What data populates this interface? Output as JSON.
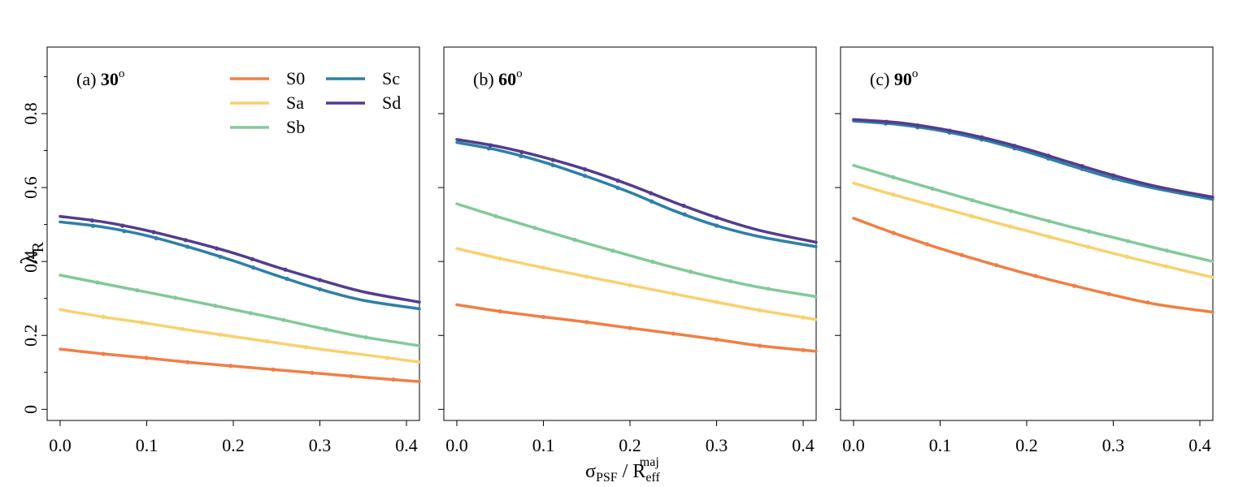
{
  "figure": {
    "xlabel": {
      "sigma": "σ",
      "sub1": "PSF",
      "sep": " / R",
      "sub2": "eff",
      "sup2": "maj"
    },
    "ylabel": {
      "main": "λ",
      "sub": "R"
    }
  },
  "chart_data": [
    {
      "type": "line",
      "panel_prefix": "(a) ",
      "panel_bold": "30",
      "panel_sup": "o",
      "xlim": [
        -0.015,
        0.415
      ],
      "ylim": [
        -0.03,
        0.98
      ],
      "xticks": [
        "0.0",
        "0.1",
        "0.2",
        "0.3",
        "0.4"
      ],
      "yticks": [
        "0",
        "0.2",
        "0.4",
        "0.6",
        "0.8"
      ],
      "show_yticklabels": true,
      "show_legend": true,
      "series": [
        {
          "name": "S0",
          "color": "#F07F45",
          "x": [
            0,
            0.05,
            0.1,
            0.15,
            0.2,
            0.25,
            0.3,
            0.35,
            0.415
          ],
          "y": [
            0.163,
            0.15,
            0.139,
            0.127,
            0.117,
            0.107,
            0.097,
            0.087,
            0.075
          ],
          "markers_x": [
            0.05,
            0.1,
            0.147,
            0.197,
            0.246,
            0.291,
            0.336,
            0.385
          ]
        },
        {
          "name": "Sa",
          "color": "#F8D16F",
          "x": [
            0,
            0.05,
            0.1,
            0.15,
            0.2,
            0.25,
            0.3,
            0.35,
            0.415
          ],
          "y": [
            0.27,
            0.25,
            0.233,
            0.214,
            0.197,
            0.18,
            0.163,
            0.148,
            0.128
          ],
          "markers_x": [
            0.05,
            0.095,
            0.141,
            0.185,
            0.239,
            0.284,
            0.33,
            0.378
          ]
        },
        {
          "name": "Sb",
          "color": "#82C99A",
          "x": [
            0,
            0.05,
            0.1,
            0.15,
            0.2,
            0.25,
            0.3,
            0.35,
            0.415
          ],
          "y": [
            0.363,
            0.34,
            0.317,
            0.294,
            0.27,
            0.246,
            0.22,
            0.196,
            0.172
          ],
          "markers_x": [
            0.043,
            0.089,
            0.133,
            0.179,
            0.22,
            0.258,
            0.307,
            0.353
          ]
        },
        {
          "name": "Sc",
          "color": "#2E7FA8",
          "x": [
            0,
            0.05,
            0.1,
            0.15,
            0.2,
            0.25,
            0.3,
            0.35,
            0.415
          ],
          "y": [
            0.507,
            0.493,
            0.47,
            0.438,
            0.402,
            0.362,
            0.325,
            0.295,
            0.272
          ],
          "markers_x": [
            0.038,
            0.074,
            0.111,
            0.147,
            0.185,
            0.223,
            0.262,
            0.3
          ]
        },
        {
          "name": "Sd",
          "color": "#533C8F",
          "x": [
            0,
            0.05,
            0.1,
            0.15,
            0.2,
            0.25,
            0.3,
            0.35,
            0.415
          ],
          "y": [
            0.522,
            0.507,
            0.484,
            0.455,
            0.423,
            0.385,
            0.35,
            0.318,
            0.29
          ],
          "markers_x": [
            0.037,
            0.072,
            0.108,
            0.145,
            0.181,
            0.222,
            0.26,
            0.3
          ]
        }
      ]
    },
    {
      "type": "line",
      "panel_prefix": "(b) ",
      "panel_bold": "60",
      "panel_sup": "o",
      "xlim": [
        -0.015,
        0.415
      ],
      "ylim": [
        -0.03,
        0.98
      ],
      "xticks": [
        "0.0",
        "0.1",
        "0.2",
        "0.3",
        "0.4"
      ],
      "yticks": [
        "0",
        "0.2",
        "0.4",
        "0.6",
        "0.8"
      ],
      "show_yticklabels": false,
      "show_legend": false,
      "series": [
        {
          "name": "S0",
          "color": "#F07F45",
          "x": [
            0,
            0.05,
            0.1,
            0.15,
            0.2,
            0.25,
            0.3,
            0.35,
            0.415
          ],
          "y": [
            0.283,
            0.265,
            0.25,
            0.236,
            0.22,
            0.205,
            0.189,
            0.172,
            0.157
          ],
          "markers_x": [
            0.05,
            0.1,
            0.15,
            0.2,
            0.25,
            0.3,
            0.35,
            0.4
          ]
        },
        {
          "name": "Sa",
          "color": "#F8D16F",
          "x": [
            0,
            0.05,
            0.1,
            0.15,
            0.2,
            0.25,
            0.3,
            0.35,
            0.415
          ],
          "y": [
            0.435,
            0.408,
            0.383,
            0.359,
            0.336,
            0.313,
            0.29,
            0.268,
            0.243
          ],
          "markers_x": [
            0.05,
            0.1,
            0.15,
            0.2,
            0.25,
            0.3,
            0.35,
            0.4
          ]
        },
        {
          "name": "Sb",
          "color": "#82C99A",
          "x": [
            0,
            0.05,
            0.1,
            0.15,
            0.2,
            0.25,
            0.3,
            0.35,
            0.415
          ],
          "y": [
            0.556,
            0.519,
            0.484,
            0.449,
            0.416,
            0.384,
            0.355,
            0.33,
            0.305
          ],
          "markers_x": [
            0.045,
            0.09,
            0.136,
            0.18,
            0.226,
            0.27,
            0.316,
            0.36
          ]
        },
        {
          "name": "Sc",
          "color": "#2E7FA8",
          "x": [
            0,
            0.05,
            0.1,
            0.15,
            0.2,
            0.25,
            0.3,
            0.35,
            0.415
          ],
          "y": [
            0.722,
            0.7,
            0.669,
            0.63,
            0.587,
            0.538,
            0.497,
            0.467,
            0.44
          ],
          "markers_x": [
            0.037,
            0.074,
            0.111,
            0.148,
            0.186,
            0.225,
            0.263,
            0.3
          ]
        },
        {
          "name": "Sd",
          "color": "#533C8F",
          "x": [
            0,
            0.05,
            0.1,
            0.15,
            0.2,
            0.25,
            0.3,
            0.35,
            0.415
          ],
          "y": [
            0.73,
            0.71,
            0.682,
            0.648,
            0.607,
            0.561,
            0.519,
            0.484,
            0.452
          ],
          "markers_x": [
            0.039,
            0.075,
            0.111,
            0.148,
            0.186,
            0.224,
            0.262,
            0.3
          ]
        }
      ]
    },
    {
      "type": "line",
      "panel_prefix": "(c) ",
      "panel_bold": "90",
      "panel_sup": "o",
      "xlim": [
        -0.015,
        0.415
      ],
      "ylim": [
        -0.03,
        0.98
      ],
      "xticks": [
        "0.0",
        "0.1",
        "0.2",
        "0.3",
        "0.4"
      ],
      "yticks": [
        "0",
        "0.2",
        "0.4",
        "0.6",
        "0.8"
      ],
      "show_yticklabels": false,
      "show_legend": false,
      "series": [
        {
          "name": "S0",
          "color": "#F07F45",
          "x": [
            0,
            0.05,
            0.1,
            0.15,
            0.2,
            0.25,
            0.3,
            0.35,
            0.415
          ],
          "y": [
            0.517,
            0.474,
            0.435,
            0.4,
            0.367,
            0.337,
            0.309,
            0.284,
            0.263
          ],
          "markers_x": [
            0.046,
            0.085,
            0.125,
            0.165,
            0.21,
            0.255,
            0.295,
            0.34
          ]
        },
        {
          "name": "Sa",
          "color": "#F8D16F",
          "x": [
            0,
            0.05,
            0.1,
            0.15,
            0.2,
            0.25,
            0.3,
            0.35,
            0.415
          ],
          "y": [
            0.612,
            0.578,
            0.546,
            0.514,
            0.483,
            0.452,
            0.422,
            0.393,
            0.357
          ],
          "markers_x": [
            0.046,
            0.091,
            0.136,
            0.181,
            0.226,
            0.271,
            0.316,
            0.361
          ]
        },
        {
          "name": "Sb",
          "color": "#82C99A",
          "x": [
            0,
            0.05,
            0.1,
            0.15,
            0.2,
            0.25,
            0.3,
            0.35,
            0.415
          ],
          "y": [
            0.66,
            0.625,
            0.591,
            0.557,
            0.525,
            0.494,
            0.465,
            0.436,
            0.4
          ],
          "markers_x": [
            0.046,
            0.091,
            0.137,
            0.182,
            0.226,
            0.272,
            0.317,
            0.362
          ]
        },
        {
          "name": "Sc",
          "color": "#2E7FA8",
          "x": [
            0,
            0.05,
            0.1,
            0.15,
            0.2,
            0.25,
            0.3,
            0.35,
            0.415
          ],
          "y": [
            0.78,
            0.771,
            0.754,
            0.729,
            0.697,
            0.66,
            0.625,
            0.597,
            0.568
          ],
          "markers_x": [
            0.037,
            0.074,
            0.111,
            0.148,
            0.186,
            0.225,
            0.264,
            0.3
          ]
        },
        {
          "name": "Sd",
          "color": "#533C8F",
          "x": [
            0,
            0.05,
            0.1,
            0.15,
            0.2,
            0.25,
            0.3,
            0.35,
            0.415
          ],
          "y": [
            0.784,
            0.776,
            0.759,
            0.735,
            0.704,
            0.668,
            0.633,
            0.603,
            0.574
          ],
          "markers_x": [
            0.038,
            0.074,
            0.111,
            0.148,
            0.186,
            0.225,
            0.264,
            0.3
          ]
        }
      ]
    }
  ]
}
